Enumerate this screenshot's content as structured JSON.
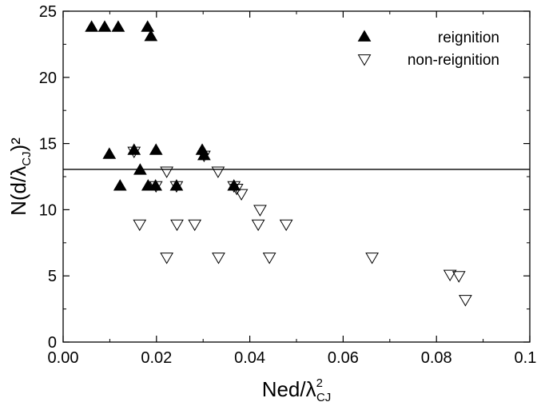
{
  "chart_data": {
    "type": "scatter",
    "xlabel": "Ned/λ",
    "xlabel_super": "2",
    "xlabel_sub": "CJ",
    "ylabel_main": "N(d/λ",
    "ylabel_sub": "CJ",
    "ylabel_end": ")²",
    "xlim": [
      0.0,
      0.1
    ],
    "ylim": [
      0,
      25
    ],
    "x_ticks": [
      0.0,
      0.02,
      0.04,
      0.06,
      0.08,
      0.1
    ],
    "x_tick_labels": [
      "0.00",
      "0.02",
      "0.04",
      "0.06",
      "0.08",
      "0.10"
    ],
    "y_ticks": [
      0,
      5,
      10,
      15,
      20,
      25
    ],
    "y_tick_labels": [
      "0",
      "5",
      "10",
      "15",
      "20",
      "25"
    ],
    "grid": false,
    "legend_position": "top-right",
    "reference_line_y": 13.05,
    "series": [
      {
        "name": "reignition",
        "marker": "triangle-up-filled",
        "color": "#000000",
        "points": [
          [
            0.0061,
            23.8
          ],
          [
            0.0089,
            23.8
          ],
          [
            0.0118,
            23.8
          ],
          [
            0.0181,
            23.8
          ],
          [
            0.0188,
            23.1
          ],
          [
            0.0099,
            14.2
          ],
          [
            0.0152,
            14.5
          ],
          [
            0.0199,
            14.5
          ],
          [
            0.0298,
            14.5
          ],
          [
            0.0302,
            14.1
          ],
          [
            0.0165,
            13.0
          ],
          [
            0.0122,
            11.8
          ],
          [
            0.0182,
            11.8
          ],
          [
            0.0198,
            11.8
          ],
          [
            0.0243,
            11.8
          ],
          [
            0.0366,
            11.8
          ]
        ]
      },
      {
        "name": "non-reignition",
        "marker": "triangle-down-open",
        "color": "#000000",
        "points": [
          [
            0.0152,
            14.4
          ],
          [
            0.0302,
            14.1
          ],
          [
            0.0222,
            12.9
          ],
          [
            0.0332,
            12.9
          ],
          [
            0.0199,
            11.8
          ],
          [
            0.0243,
            11.8
          ],
          [
            0.0366,
            11.8
          ],
          [
            0.0372,
            11.6
          ],
          [
            0.0382,
            11.2
          ],
          [
            0.0422,
            10.0
          ],
          [
            0.0164,
            8.9
          ],
          [
            0.0244,
            8.9
          ],
          [
            0.0282,
            8.9
          ],
          [
            0.0418,
            8.9
          ],
          [
            0.0478,
            8.9
          ],
          [
            0.0222,
            6.4
          ],
          [
            0.0333,
            6.4
          ],
          [
            0.0442,
            6.4
          ],
          [
            0.0662,
            6.4
          ],
          [
            0.0829,
            5.1
          ],
          [
            0.0848,
            5.0
          ],
          [
            0.0862,
            3.2
          ]
        ]
      }
    ]
  }
}
